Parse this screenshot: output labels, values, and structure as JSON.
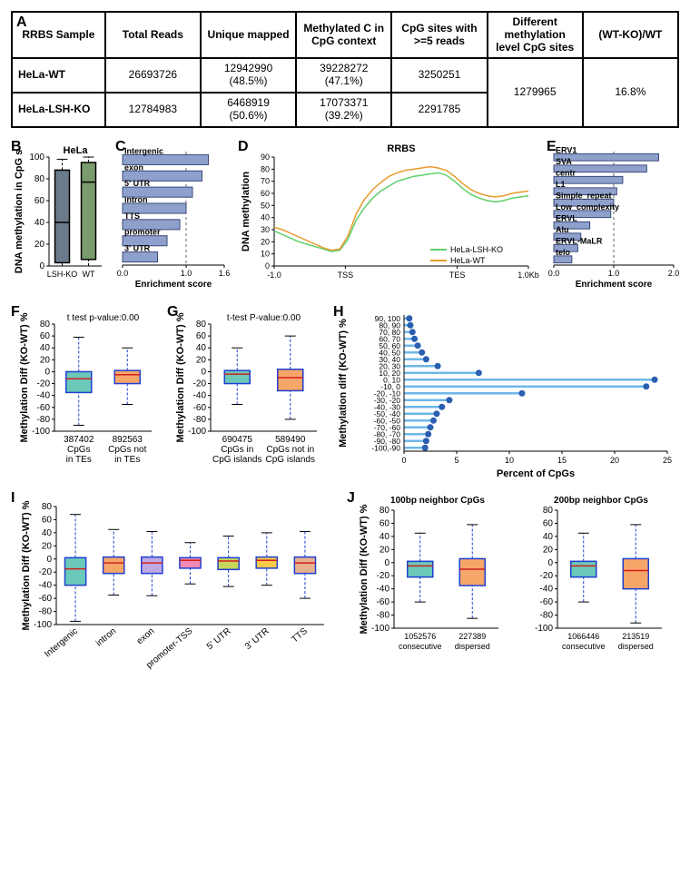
{
  "colors": {
    "bar_blue": "#8ea0cc",
    "bar_edge": "#3b4a7a",
    "box_teal": "#6bc9b9",
    "box_orange": "#f7a66a",
    "box_edge": "#1e3fd1",
    "box_median": "#d11f1f",
    "box_gray": "#6b7b8c",
    "box_green": "#7a9b6b",
    "line_wt": "#e89a2e",
    "line_ko": "#5fcf6a",
    "lollipop": "#6db6e8",
    "lollipop_dot": "#2a5eb0",
    "i_colors": [
      "#6bc9b9",
      "#f7a66a",
      "#bda9e3",
      "#f28ab3",
      "#c7d65a",
      "#f5c94a",
      "#e7b08e"
    ]
  },
  "tableA": {
    "panel": "A",
    "headers": [
      "RRBS Sample",
      "Total Reads",
      "Unique mapped",
      "Methylated C in CpG context",
      "CpG sites with >=5 reads",
      "Different methylation level CpG sites",
      "(WT-KO)/WT"
    ],
    "rows": [
      {
        "sample": "HeLa-WT",
        "total": "26693726",
        "unique": "12942990 (48.5%)",
        "methC": "39228272 (47.1%)",
        "cpg5": "3250251"
      },
      {
        "sample": "HeLa-LSH-KO",
        "total": "12784983",
        "unique": "6468919 (50.6%)",
        "methC": "17073371 (39.2%)",
        "cpg5": "2291785"
      }
    ],
    "diff_sites": "1279965",
    "ratio": "16.8%"
  },
  "B": {
    "panel": "B",
    "title": "HeLa",
    "ylabel": "DNA methylation in CpG s",
    "ylim": [
      0,
      100
    ],
    "ytick": 20,
    "cats": [
      "LSH-KO",
      "WT"
    ],
    "boxes": [
      {
        "q1": 3,
        "med": 40,
        "q3": 88,
        "lo": 0,
        "hi": 98,
        "fill": "#6b7b8c"
      },
      {
        "q1": 6,
        "med": 77,
        "q3": 95,
        "lo": 0,
        "hi": 100,
        "fill": "#7a9b6b"
      }
    ]
  },
  "C": {
    "panel": "C",
    "xlabel": "Enrichment score",
    "xlim": [
      0,
      1.6
    ],
    "xticks": [
      0.0,
      1.0,
      1.6
    ],
    "dash": 1.0,
    "items": [
      {
        "label": "Intergenic",
        "v": 1.35
      },
      {
        "label": "exon",
        "v": 1.25
      },
      {
        "label": "5' UTR",
        "v": 1.1
      },
      {
        "label": "intron",
        "v": 1.0
      },
      {
        "label": "TTS",
        "v": 0.9
      },
      {
        "label": "promoter",
        "v": 0.7
      },
      {
        "label": "3' UTR",
        "v": 0.55
      }
    ]
  },
  "D": {
    "panel": "D",
    "title": "RRBS",
    "ylabel": "DNA methylation",
    "ylim": [
      0,
      90
    ],
    "ytick": 10,
    "xticks": [
      "-1.0",
      "TSS",
      "TES",
      "1.0Kb"
    ],
    "legend": [
      {
        "label": "HeLa-LSH-KO",
        "color": "#5fcf6a"
      },
      {
        "label": "HeLa-WT",
        "color": "#e89a2e"
      }
    ],
    "wt": [
      32,
      30,
      27,
      24,
      21,
      18,
      15,
      13,
      14,
      25,
      43,
      55,
      63,
      69,
      74,
      77,
      79,
      80,
      81,
      82,
      81,
      79,
      74,
      68,
      63,
      60,
      58,
      57,
      58,
      60,
      61,
      62
    ],
    "ko": [
      29,
      26,
      23,
      20,
      18,
      16,
      14,
      12,
      13,
      22,
      38,
      48,
      56,
      62,
      66,
      70,
      72,
      74,
      75,
      76,
      77,
      75,
      70,
      64,
      59,
      56,
      54,
      53,
      54,
      56,
      57,
      58
    ]
  },
  "E": {
    "panel": "E",
    "xlabel": "Enrichment score",
    "xlim": [
      0,
      2.0
    ],
    "xticks": [
      0.0,
      1.0,
      2.0
    ],
    "dash": 1.0,
    "items": [
      {
        "label": "ERV1",
        "v": 1.75
      },
      {
        "label": "SVA",
        "v": 1.55
      },
      {
        "label": "centr",
        "v": 1.15
      },
      {
        "label": "L1",
        "v": 1.05
      },
      {
        "label": "Simple_repeat",
        "v": 1.0
      },
      {
        "label": "Low_complexity",
        "v": 0.95
      },
      {
        "label": "ERVL",
        "v": 0.6
      },
      {
        "label": "Alu",
        "v": 0.45
      },
      {
        "label": "ERVL-MaLR",
        "v": 0.4
      },
      {
        "label": "telo",
        "v": 0.3
      }
    ]
  },
  "F": {
    "panel": "F",
    "caption": "t test p-value:0.00",
    "ylabel": "Methylation Diff (KO-WT) %",
    "ylim": [
      -100,
      80
    ],
    "ytick": 20,
    "cats": [
      "387402\nCpGs\nin TEs",
      "892563\nCpGs not\nin TEs"
    ],
    "boxes": [
      {
        "q1": -35,
        "med": -12,
        "q3": 0,
        "lo": -90,
        "hi": 58,
        "fill": "#6bc9b9"
      },
      {
        "q1": -20,
        "med": -5,
        "q3": 2,
        "lo": -55,
        "hi": 40,
        "fill": "#f7a66a"
      }
    ]
  },
  "G": {
    "panel": "G",
    "caption": "t-test P-value:0.00",
    "ylabel": "Methylation Diff (KO-WT) %",
    "ylim": [
      -100,
      80
    ],
    "ytick": 20,
    "cats": [
      "690475\nCpGs in\nCpG islands",
      "589490\nCpGs not in\nCpG islands"
    ],
    "boxes": [
      {
        "q1": -20,
        "med": -4,
        "q3": 2,
        "lo": -55,
        "hi": 40,
        "fill": "#6bc9b9"
      },
      {
        "q1": -32,
        "med": -10,
        "q3": 4,
        "lo": -80,
        "hi": 60,
        "fill": "#f7a66a"
      }
    ]
  },
  "H": {
    "panel": "H",
    "ylabel": "Methylation diff (KO-WT) %",
    "xlabel": "Percent of CpGs",
    "xlim": [
      0,
      25
    ],
    "xtick": 5,
    "items": [
      {
        "label": "90, 100",
        "v": 0.5
      },
      {
        "label": "80, 90",
        "v": 0.6
      },
      {
        "label": "70, 80",
        "v": 0.8
      },
      {
        "label": "60, 70",
        "v": 1.0
      },
      {
        "label": "50, 60",
        "v": 1.3
      },
      {
        "label": "40, 50",
        "v": 1.7
      },
      {
        "label": "30, 40",
        "v": 2.1
      },
      {
        "label": "20, 30",
        "v": 3.2
      },
      {
        "label": "10, 20",
        "v": 7.1
      },
      {
        "label": "0, 10",
        "v": 23.8
      },
      {
        "label": "-10, 0",
        "v": 23.0
      },
      {
        "label": "-20, -10",
        "v": 11.2
      },
      {
        "label": "-30, -20",
        "v": 4.3
      },
      {
        "label": "-40, -30",
        "v": 3.6
      },
      {
        "label": "-50, -40",
        "v": 3.1
      },
      {
        "label": "-60, -50",
        "v": 2.8
      },
      {
        "label": "-70, -60",
        "v": 2.5
      },
      {
        "label": "-80, -70",
        "v": 2.3
      },
      {
        "label": "-90, -80",
        "v": 2.1
      },
      {
        "label": "-100,-90",
        "v": 2.0
      }
    ]
  },
  "I": {
    "panel": "I",
    "ylabel": "Methylation Diff (KO-WT) %",
    "ylim": [
      -100,
      80
    ],
    "ytick": 20,
    "cats": [
      "Intergenic",
      "intron",
      "exon",
      "promoter-TSS",
      "5' UTR",
      "3' UTR",
      "TTS"
    ],
    "boxes": [
      {
        "q1": -40,
        "med": -15,
        "q3": 2,
        "lo": -95,
        "hi": 68
      },
      {
        "q1": -22,
        "med": -6,
        "q3": 3,
        "lo": -55,
        "hi": 45
      },
      {
        "q1": -22,
        "med": -6,
        "q3": 3,
        "lo": -56,
        "hi": 42
      },
      {
        "q1": -14,
        "med": -2,
        "q3": 2,
        "lo": -38,
        "hi": 25
      },
      {
        "q1": -16,
        "med": -3,
        "q3": 2,
        "lo": -42,
        "hi": 35
      },
      {
        "q1": -14,
        "med": -2,
        "q3": 3,
        "lo": -40,
        "hi": 40
      },
      {
        "q1": -22,
        "med": -6,
        "q3": 3,
        "lo": -60,
        "hi": 42
      }
    ]
  },
  "J": {
    "panel": "J",
    "ylabel": "Methylation Diff (KO-WT) %",
    "ylim": [
      -100,
      80
    ],
    "ytick": 20,
    "sub": [
      {
        "title": "100bp neighbor CpGs",
        "cats": [
          "1052576\nconsecutive",
          "227389\ndispersed"
        ],
        "boxes": [
          {
            "q1": -22,
            "med": -5,
            "q3": 2,
            "lo": -60,
            "hi": 45,
            "fill": "#6bc9b9"
          },
          {
            "q1": -35,
            "med": -10,
            "q3": 6,
            "lo": -85,
            "hi": 58,
            "fill": "#f7a66a"
          }
        ]
      },
      {
        "title": "200bp neighbor CpGs",
        "cats": [
          "1066446\nconsecutive",
          "213519\ndispersed"
        ],
        "boxes": [
          {
            "q1": -22,
            "med": -5,
            "q3": 2,
            "lo": -60,
            "hi": 45,
            "fill": "#6bc9b9"
          },
          {
            "q1": -40,
            "med": -12,
            "q3": 6,
            "lo": -92,
            "hi": 58,
            "fill": "#f7a66a"
          }
        ]
      }
    ]
  }
}
